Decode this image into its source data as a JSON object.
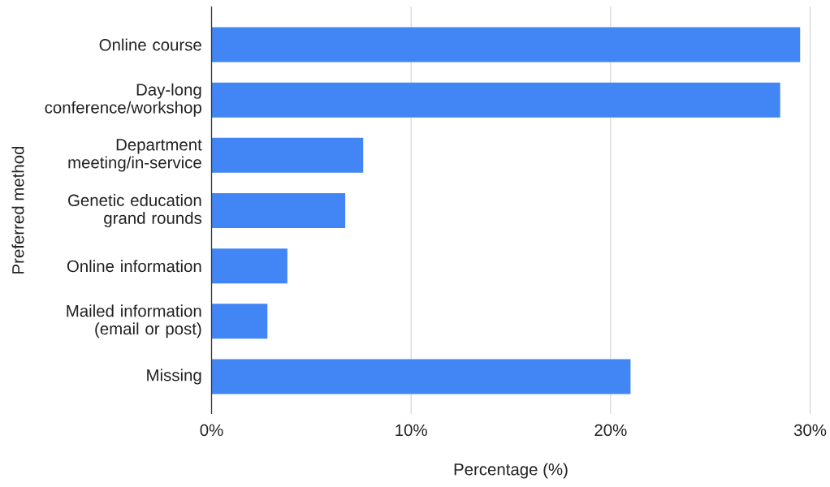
{
  "chart_data": {
    "type": "bar",
    "orientation": "horizontal",
    "xlabel": "Percentage (%)",
    "ylabel": "Preferred method",
    "categories": [
      "Online course",
      "Day-long conference/workshop",
      "Department meeting/in-service",
      "Genetic education grand rounds",
      "Online information",
      "Mailed information (email or post)",
      "Missing"
    ],
    "values": [
      29.5,
      28.5,
      7.6,
      6.7,
      3.8,
      2.8,
      21.0
    ],
    "color": "#4285f4",
    "xlim": [
      0,
      30
    ],
    "xticks": [
      {
        "value": 0,
        "label": "0%"
      },
      {
        "value": 10,
        "label": "10%"
      },
      {
        "value": 20,
        "label": "20%"
      },
      {
        "value": 30,
        "label": "30%"
      }
    ],
    "grid": "x"
  }
}
